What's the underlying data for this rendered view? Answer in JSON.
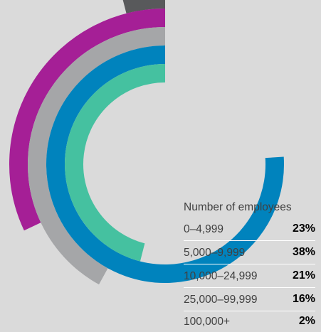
{
  "chart_data": {
    "type": "radial-bar",
    "legend_title": "Number of employees",
    "categories": [
      "0–4,999",
      "5,000–9,999",
      "10,000–24,999",
      "25,000–99,999",
      "100,000+"
    ],
    "values": [
      23,
      38,
      21,
      16,
      2
    ],
    "value_labels": [
      "23%",
      "38%",
      "21%",
      "16%",
      "2%"
    ],
    "colors": [
      "#45c1a0",
      "#0083bd",
      "#a5a6a8",
      "#a51f96",
      "#58595b"
    ],
    "legend_placement": "bottom-right"
  }
}
